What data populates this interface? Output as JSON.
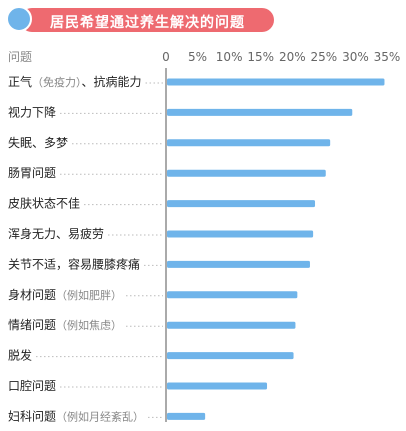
{
  "title": "居民希望通过养生解决的问题",
  "colors": {
    "bar": "#6fb4ea",
    "banner": "#ee6a70",
    "dot": "#6fb4ea"
  },
  "chart_data": {
    "type": "bar",
    "orientation": "horizontal",
    "category_header": "问题",
    "categories": [
      {
        "label": "正气",
        "sub": "（免疫力）",
        "tail": "、抗病能力"
      },
      {
        "label": "视力下降",
        "sub": "",
        "tail": ""
      },
      {
        "label": "失眠、多梦",
        "sub": "",
        "tail": ""
      },
      {
        "label": "肠胃问题",
        "sub": "",
        "tail": ""
      },
      {
        "label": "皮肤状态不佳",
        "sub": "",
        "tail": ""
      },
      {
        "label": "浑身无力、易疲劳",
        "sub": "",
        "tail": ""
      },
      {
        "label": "关节不适，容易腰膝疼痛",
        "sub": "",
        "tail": ""
      },
      {
        "label": "身材问题",
        "sub": "（例如肥胖）",
        "tail": ""
      },
      {
        "label": "情绪问题",
        "sub": "（例如焦虑）",
        "tail": ""
      },
      {
        "label": "脱发",
        "sub": "",
        "tail": ""
      },
      {
        "label": "口腔问题",
        "sub": "",
        "tail": ""
      },
      {
        "label": "妇科问题",
        "sub": "（例如月经紊乱）",
        "tail": ""
      }
    ],
    "values": [
      34.6,
      29.5,
      26.0,
      25.3,
      23.6,
      23.3,
      22.8,
      20.8,
      20.5,
      20.2,
      16.0,
      6.2
    ],
    "xlim": [
      0,
      35
    ],
    "xticks": [
      0,
      5,
      10,
      15,
      20,
      25,
      30,
      35
    ],
    "xtick_labels": [
      "0",
      "5%",
      "10%",
      "15%",
      "20%",
      "25%",
      "30%",
      "35%"
    ],
    "grid": false
  }
}
